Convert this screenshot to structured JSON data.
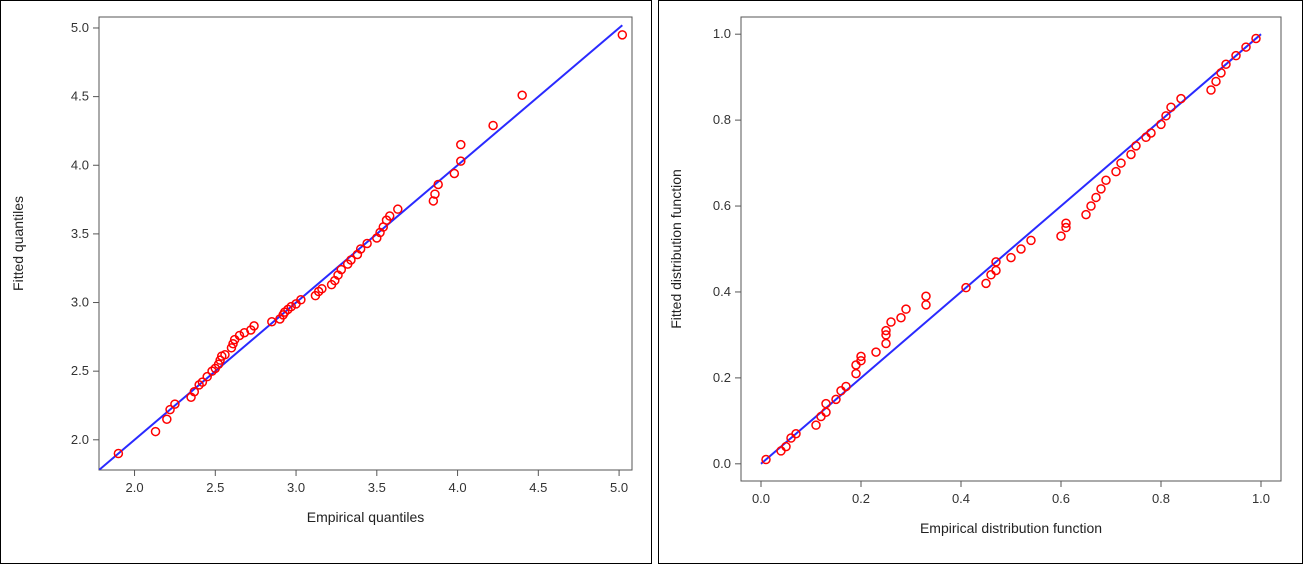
{
  "charts": [
    {
      "type": "scatter",
      "xlabel": "Empirical quantiles",
      "ylabel": "Fitted quantiles",
      "xlim": [
        1.78,
        5.08
      ],
      "ylim": [
        1.78,
        5.08
      ],
      "xticks": [
        2.0,
        2.5,
        3.0,
        3.5,
        4.0,
        4.5,
        5.0
      ],
      "yticks": [
        2.0,
        2.5,
        3.0,
        3.5,
        4.0,
        4.5,
        5.0
      ],
      "tick_labels_x": [
        "2.0",
        "2.5",
        "3.0",
        "3.5",
        "4.0",
        "4.5",
        "5.0"
      ],
      "tick_labels_y": [
        "2.0",
        "2.5",
        "3.0",
        "3.5",
        "4.0",
        "4.5",
        "5.0"
      ],
      "reference_line": [
        [
          1.78,
          1.78
        ],
        [
          5.02,
          5.02
        ]
      ],
      "point_color": "#ff0000",
      "line_color": "#2a2aff",
      "points": [
        [
          1.9,
          1.9
        ],
        [
          2.13,
          2.06
        ],
        [
          2.2,
          2.15
        ],
        [
          2.22,
          2.22
        ],
        [
          2.25,
          2.26
        ],
        [
          2.35,
          2.31
        ],
        [
          2.37,
          2.35
        ],
        [
          2.4,
          2.4
        ],
        [
          2.42,
          2.42
        ],
        [
          2.45,
          2.46
        ],
        [
          2.48,
          2.5
        ],
        [
          2.5,
          2.52
        ],
        [
          2.52,
          2.55
        ],
        [
          2.53,
          2.58
        ],
        [
          2.54,
          2.61
        ],
        [
          2.56,
          2.62
        ],
        [
          2.6,
          2.67
        ],
        [
          2.61,
          2.7
        ],
        [
          2.62,
          2.73
        ],
        [
          2.65,
          2.76
        ],
        [
          2.68,
          2.78
        ],
        [
          2.72,
          2.8
        ],
        [
          2.74,
          2.83
        ],
        [
          2.85,
          2.86
        ],
        [
          2.9,
          2.88
        ],
        [
          2.92,
          2.91
        ],
        [
          2.93,
          2.93
        ],
        [
          2.95,
          2.95
        ],
        [
          2.97,
          2.97
        ],
        [
          3.0,
          2.99
        ],
        [
          3.03,
          3.02
        ],
        [
          3.12,
          3.05
        ],
        [
          3.14,
          3.08
        ],
        [
          3.16,
          3.1
        ],
        [
          3.22,
          3.13
        ],
        [
          3.24,
          3.16
        ],
        [
          3.26,
          3.2
        ],
        [
          3.28,
          3.24
        ],
        [
          3.32,
          3.28
        ],
        [
          3.34,
          3.31
        ],
        [
          3.38,
          3.35
        ],
        [
          3.4,
          3.39
        ],
        [
          3.44,
          3.43
        ],
        [
          3.5,
          3.47
        ],
        [
          3.52,
          3.51
        ],
        [
          3.54,
          3.55
        ],
        [
          3.56,
          3.6
        ],
        [
          3.58,
          3.63
        ],
        [
          3.63,
          3.68
        ],
        [
          3.85,
          3.74
        ],
        [
          3.86,
          3.79
        ],
        [
          3.88,
          3.86
        ],
        [
          3.98,
          3.94
        ],
        [
          4.02,
          4.03
        ],
        [
          4.02,
          4.15
        ],
        [
          4.22,
          4.29
        ],
        [
          4.4,
          4.51
        ],
        [
          5.02,
          4.95
        ]
      ]
    },
    {
      "type": "scatter",
      "xlabel": "Empirical distribution function",
      "ylabel": "Fitted distribution function",
      "xlim": [
        -0.04,
        1.04
      ],
      "ylim": [
        -0.04,
        1.04
      ],
      "xticks": [
        0.0,
        0.2,
        0.4,
        0.6,
        0.8,
        1.0
      ],
      "yticks": [
        0.0,
        0.2,
        0.4,
        0.6,
        0.8,
        1.0
      ],
      "tick_labels_x": [
        "0.0",
        "0.2",
        "0.4",
        "0.6",
        "0.8",
        "1.0"
      ],
      "tick_labels_y": [
        "0.0",
        "0.2",
        "0.4",
        "0.6",
        "0.8",
        "1.0"
      ],
      "reference_line": [
        [
          0.0,
          0.0
        ],
        [
          1.0,
          1.0
        ]
      ],
      "point_color": "#ff0000",
      "line_color": "#2a2aff",
      "points": [
        [
          0.01,
          0.01
        ],
        [
          0.04,
          0.03
        ],
        [
          0.05,
          0.04
        ],
        [
          0.06,
          0.06
        ],
        [
          0.07,
          0.07
        ],
        [
          0.11,
          0.09
        ],
        [
          0.12,
          0.11
        ],
        [
          0.13,
          0.12
        ],
        [
          0.13,
          0.14
        ],
        [
          0.15,
          0.15
        ],
        [
          0.16,
          0.17
        ],
        [
          0.17,
          0.18
        ],
        [
          0.19,
          0.21
        ],
        [
          0.19,
          0.23
        ],
        [
          0.2,
          0.24
        ],
        [
          0.2,
          0.25
        ],
        [
          0.23,
          0.26
        ],
        [
          0.25,
          0.28
        ],
        [
          0.25,
          0.3
        ],
        [
          0.25,
          0.31
        ],
        [
          0.26,
          0.33
        ],
        [
          0.28,
          0.34
        ],
        [
          0.29,
          0.36
        ],
        [
          0.33,
          0.37
        ],
        [
          0.33,
          0.39
        ],
        [
          0.41,
          0.41
        ],
        [
          0.45,
          0.42
        ],
        [
          0.46,
          0.44
        ],
        [
          0.47,
          0.45
        ],
        [
          0.47,
          0.47
        ],
        [
          0.5,
          0.48
        ],
        [
          0.52,
          0.5
        ],
        [
          0.54,
          0.52
        ],
        [
          0.6,
          0.53
        ],
        [
          0.61,
          0.55
        ],
        [
          0.61,
          0.56
        ],
        [
          0.65,
          0.58
        ],
        [
          0.66,
          0.6
        ],
        [
          0.67,
          0.62
        ],
        [
          0.68,
          0.64
        ],
        [
          0.69,
          0.66
        ],
        [
          0.71,
          0.68
        ],
        [
          0.72,
          0.7
        ],
        [
          0.74,
          0.72
        ],
        [
          0.75,
          0.74
        ],
        [
          0.77,
          0.76
        ],
        [
          0.78,
          0.77
        ],
        [
          0.8,
          0.79
        ],
        [
          0.81,
          0.81
        ],
        [
          0.82,
          0.83
        ],
        [
          0.84,
          0.85
        ],
        [
          0.9,
          0.87
        ],
        [
          0.91,
          0.89
        ],
        [
          0.92,
          0.91
        ],
        [
          0.93,
          0.93
        ],
        [
          0.95,
          0.95
        ],
        [
          0.97,
          0.97
        ],
        [
          0.99,
          0.99
        ]
      ]
    }
  ]
}
